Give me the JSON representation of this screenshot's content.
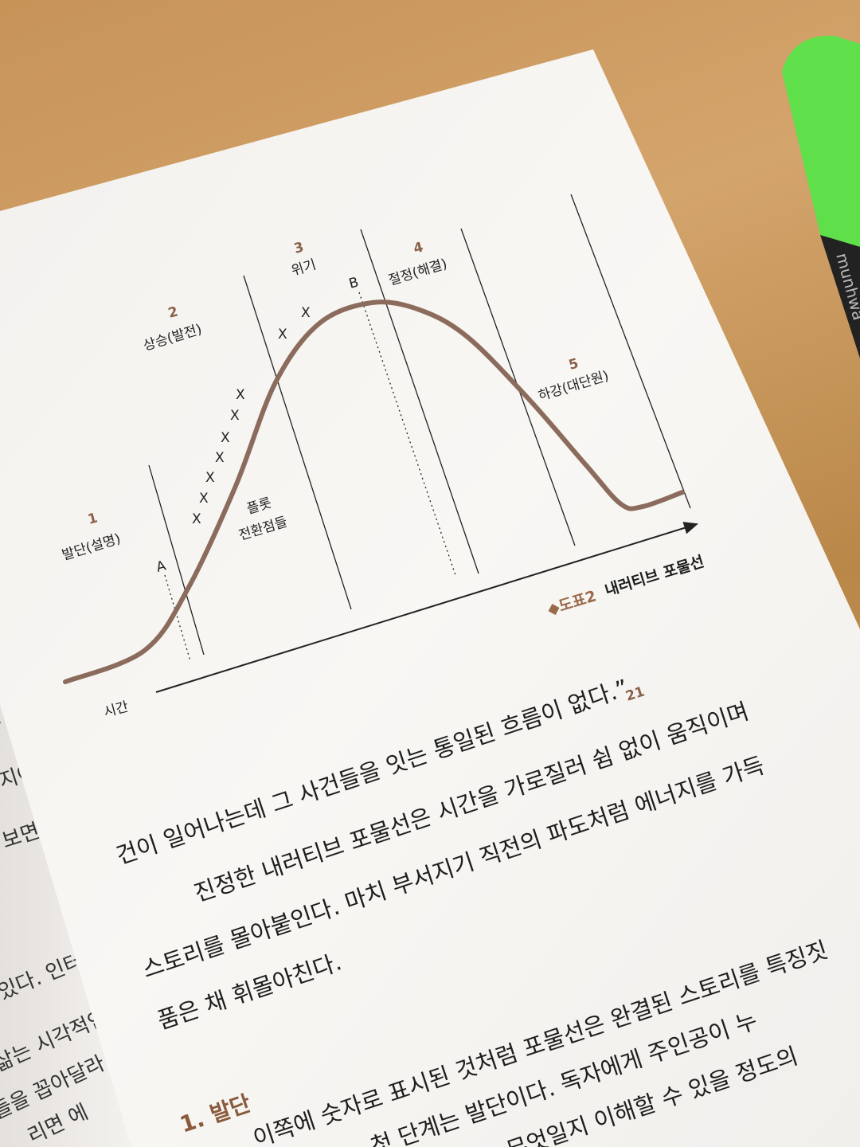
{
  "diagram": {
    "stages": [
      {
        "number": "1",
        "label": "발단(설명)"
      },
      {
        "number": "2",
        "label": "상승(발전)"
      },
      {
        "number": "3",
        "label": "위기"
      },
      {
        "number": "4",
        "label": "절정(해결)"
      },
      {
        "number": "5",
        "label": "하강(대단원)"
      }
    ],
    "marker_a": "A",
    "marker_b": "B",
    "turning_points_line1": "플롯",
    "turning_points_line2": "전환점들",
    "turning_point_mark": "X",
    "x_axis_label": "시간",
    "caption_prefix": "◆도표2",
    "caption_title": "내러티브 포물선",
    "curve_color": "#8b6b5c"
  },
  "body": {
    "lines": [
      "건이 일어나는데 그 사건들을 잇는 통일된 흐름이 없다.”",
      "진정한 내러티브 포물선은 시간을 가로질러 쉼 없이 움직이며",
      "스토리를 몰아붙인다. 마치 부서지기 직전의 파도처럼 에너지를 가득",
      "품은 채 휘몰아친다.",
      "이쪽에 숫자로 표시된 것처럼 포물선은 완결된 스토리를 특징짓",
      "첫 단계는 발단이다. 독자에게 주인공이 누",
      "무엇일지 이해할 수 있을 정도의"
    ],
    "footnote": "21",
    "section_heading": "1. 발단",
    "accent_color": "#8a5a3c"
  },
  "left_page": {
    "lines": [
      "지어",
      "보면 에",
      "있다. 인터",
      "삶는 시각적인",
      "들을 꼽아달라",
      "리면 에"
    ]
  },
  "highlighter": {
    "brand": "munhwa",
    "color": "#5fe04a"
  }
}
